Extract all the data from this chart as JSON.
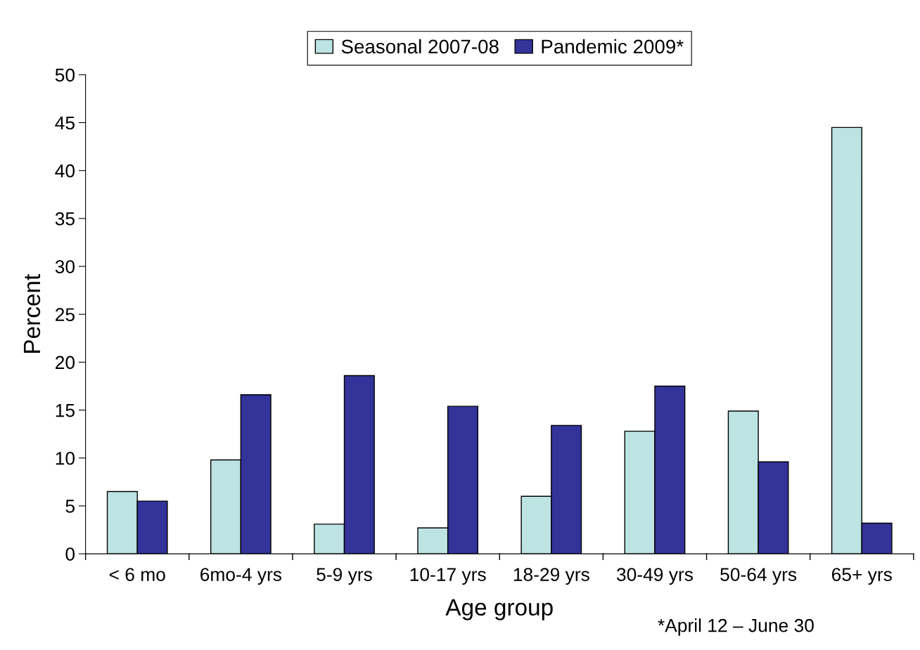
{
  "chart_data": {
    "type": "bar",
    "xlabel": "Age group",
    "ylabel": "Percent",
    "categories": [
      "< 6 mo",
      "6mo-4 yrs",
      "5-9 yrs",
      "10-17 yrs",
      "18-29 yrs",
      "30-49 yrs",
      "50-64 yrs",
      "65+ yrs"
    ],
    "series": [
      {
        "name": "Seasonal 2007-08",
        "color": "#bde3e3",
        "values": [
          6.5,
          9.8,
          3.1,
          2.7,
          6.0,
          12.8,
          14.9,
          44.5
        ]
      },
      {
        "name": "Pandemic 2009*",
        "color": "#333399",
        "values": [
          5.5,
          16.6,
          18.6,
          15.4,
          13.4,
          17.5,
          9.6,
          3.2
        ]
      }
    ],
    "ylim": [
      0,
      50
    ],
    "yticks": [
      0,
      5,
      10,
      15,
      20,
      25,
      30,
      35,
      40,
      45,
      50
    ],
    "grid": false,
    "legend": "top",
    "annotations": [
      "*April 12 – June 30"
    ]
  }
}
